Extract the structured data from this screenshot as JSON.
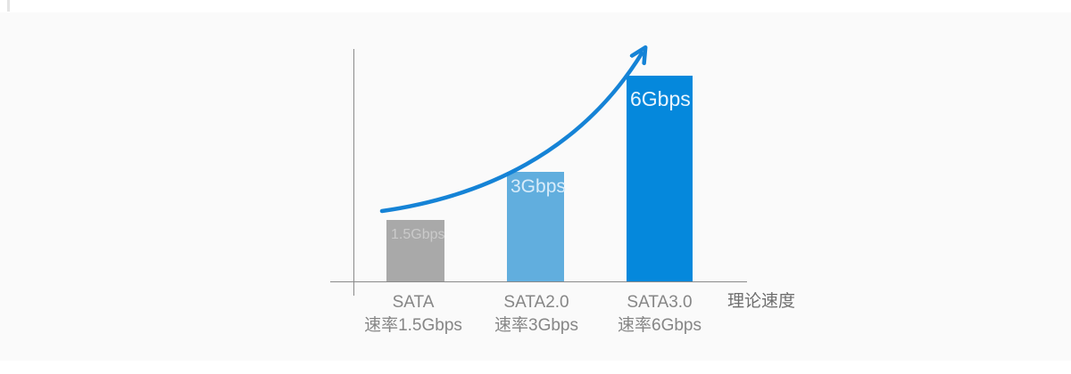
{
  "page": {
    "background": "#ffffff",
    "band_color": "#fafafa"
  },
  "chart_data": {
    "type": "bar",
    "categories": [
      "SATA",
      "SATA2.0",
      "SATA3.0"
    ],
    "category_sublabels": [
      "速率1.5Gbps",
      "速率3Gbps",
      "速率6Gbps"
    ],
    "values": [
      1.5,
      3,
      6
    ],
    "unit": "Gbps",
    "bar_labels": [
      "1.5Gbps",
      "3Gbps",
      "6Gbps"
    ],
    "bar_colors": [
      "#a9a9a9",
      "#61aede",
      "#0588dc"
    ],
    "xlabel": "理论速度",
    "title": "",
    "ylim": [
      0,
      6
    ],
    "grid": "off",
    "legend": "none",
    "annotation": "growth-arrow",
    "arrow_color": "#1583d6",
    "axis_color": "#8a8a8a",
    "label_color": "#868686"
  }
}
